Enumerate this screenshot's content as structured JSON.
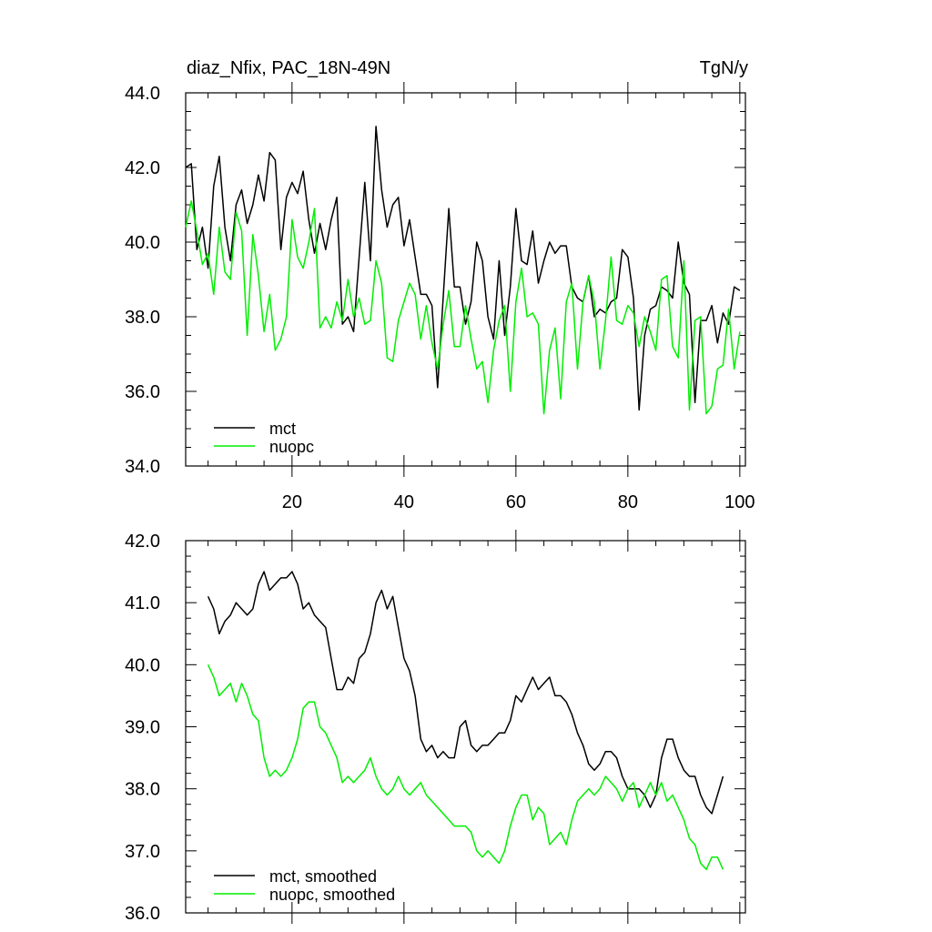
{
  "header": {
    "title": "diaz_Nfix, PAC_18N-49N",
    "units": "TgN/y"
  },
  "colors": {
    "mct": "#000000",
    "nuopc": "#00ee00",
    "axis": "#000000"
  },
  "chart_data": [
    {
      "type": "line",
      "title": "diaz_Nfix, PAC_18N-49N",
      "units": "TgN/y",
      "xlim": [
        1,
        101
      ],
      "ylim": [
        34,
        44
      ],
      "yticks": [
        34,
        36,
        38,
        40,
        42,
        44
      ],
      "ytick_labels": [
        "34.0",
        "36.0",
        "38.0",
        "40.0",
        "42.0",
        "44.0"
      ],
      "xticks": [
        20,
        40,
        60,
        80,
        100
      ],
      "xtick_labels": [
        "20",
        "40",
        "60",
        "80",
        "100"
      ],
      "legend_position": "bottom-left",
      "x": [
        1,
        2,
        3,
        4,
        5,
        6,
        7,
        8,
        9,
        10,
        11,
        12,
        13,
        14,
        15,
        16,
        17,
        18,
        19,
        20,
        21,
        22,
        23,
        24,
        25,
        26,
        27,
        28,
        29,
        30,
        31,
        32,
        33,
        34,
        35,
        36,
        37,
        38,
        39,
        40,
        41,
        42,
        43,
        44,
        45,
        46,
        47,
        48,
        49,
        50,
        51,
        52,
        53,
        54,
        55,
        56,
        57,
        58,
        59,
        60,
        61,
        62,
        63,
        64,
        65,
        66,
        67,
        68,
        69,
        70,
        71,
        72,
        73,
        74,
        75,
        76,
        77,
        78,
        79,
        80,
        81,
        82,
        83,
        84,
        85,
        86,
        87,
        88,
        89,
        90,
        91,
        92,
        93,
        94,
        95,
        96,
        97,
        98,
        99,
        100
      ],
      "series": [
        {
          "name": "mct",
          "color": "#000000",
          "values": [
            42.0,
            42.1,
            39.8,
            40.4,
            39.3,
            41.5,
            42.3,
            40.4,
            39.5,
            41.0,
            41.4,
            40.5,
            41.0,
            41.8,
            41.1,
            42.4,
            42.2,
            39.8,
            41.2,
            41.6,
            41.3,
            41.9,
            40.6,
            39.7,
            40.5,
            39.8,
            40.6,
            41.2,
            37.8,
            38.0,
            37.6,
            39.6,
            41.6,
            39.5,
            43.1,
            41.4,
            40.4,
            41.0,
            41.2,
            39.9,
            40.6,
            39.6,
            38.6,
            38.6,
            38.3,
            36.1,
            38.5,
            40.9,
            38.8,
            38.8,
            37.8,
            38.4,
            40.0,
            39.5,
            38.0,
            37.4,
            39.5,
            37.5,
            38.8,
            40.9,
            39.5,
            39.4,
            40.3,
            38.9,
            39.5,
            40.0,
            39.7,
            39.9,
            39.9,
            38.8,
            38.5,
            38.4,
            39.1,
            38.0,
            38.2,
            38.1,
            38.4,
            38.5,
            39.8,
            39.6,
            38.5,
            35.5,
            37.5,
            38.2,
            38.3,
            38.8,
            38.7,
            38.5,
            40.0,
            38.9,
            38.6,
            35.7,
            37.9,
            37.9,
            38.3,
            37.3,
            38.1,
            37.8,
            38.8,
            38.7
          ]
        },
        {
          "name": "nuopc",
          "color": "#00ee00",
          "values": [
            40.4,
            41.1,
            40.3,
            39.4,
            39.7,
            38.6,
            40.4,
            39.2,
            39.0,
            40.8,
            40.3,
            37.5,
            40.2,
            39.1,
            37.6,
            38.6,
            37.1,
            37.4,
            38.0,
            40.6,
            39.6,
            39.3,
            40.0,
            40.9,
            37.7,
            38.0,
            37.7,
            38.4,
            37.9,
            39.0,
            38.0,
            38.5,
            37.8,
            37.9,
            39.5,
            38.9,
            36.9,
            36.8,
            37.9,
            38.4,
            38.9,
            38.6,
            37.4,
            38.3,
            37.3,
            36.6,
            37.8,
            38.7,
            37.2,
            37.2,
            38.3,
            37.4,
            36.6,
            36.8,
            35.7,
            37.1,
            37.9,
            38.3,
            36.0,
            38.4,
            39.3,
            38.0,
            38.1,
            37.8,
            35.4,
            37.1,
            37.7,
            35.8,
            38.4,
            38.9,
            36.6,
            38.4,
            39.1,
            38.4,
            36.6,
            37.9,
            39.6,
            37.9,
            37.8,
            38.3,
            38.1,
            37.2,
            38.0,
            37.6,
            37.1,
            39.0,
            39.1,
            37.2,
            36.9,
            39.5,
            35.5,
            37.9,
            38.0,
            35.4,
            35.6,
            36.6,
            36.7,
            38.2,
            36.6,
            37.6
          ]
        }
      ]
    },
    {
      "type": "line",
      "title": "",
      "xlim": [
        1,
        101
      ],
      "ylim": [
        36,
        42
      ],
      "yticks": [
        36,
        37,
        38,
        39,
        40,
        41,
        42
      ],
      "ytick_labels": [
        "36.0",
        "37.0",
        "38.0",
        "39.0",
        "40.0",
        "41.0",
        "42.0"
      ],
      "xticks": [
        20,
        40,
        60,
        80,
        100
      ],
      "legend_position": "bottom-left",
      "x": [
        5,
        6,
        7,
        8,
        9,
        10,
        11,
        12,
        13,
        14,
        15,
        16,
        17,
        18,
        19,
        20,
        21,
        22,
        23,
        24,
        25,
        26,
        27,
        28,
        29,
        30,
        31,
        32,
        33,
        34,
        35,
        36,
        37,
        38,
        39,
        40,
        41,
        42,
        43,
        44,
        45,
        46,
        47,
        48,
        49,
        50,
        51,
        52,
        53,
        54,
        55,
        56,
        57,
        58,
        59,
        60,
        61,
        62,
        63,
        64,
        65,
        66,
        67,
        68,
        69,
        70,
        71,
        72,
        73,
        74,
        75,
        76,
        77,
        78,
        79,
        80,
        81,
        82,
        83,
        84,
        85,
        86,
        87,
        88,
        89,
        90,
        91,
        92,
        93,
        94,
        95,
        96,
        97
      ],
      "series": [
        {
          "name": "mct, smoothed",
          "color": "#000000",
          "values": [
            41.1,
            40.9,
            40.5,
            40.7,
            40.8,
            41.0,
            40.9,
            40.8,
            40.9,
            41.3,
            41.5,
            41.2,
            41.3,
            41.4,
            41.4,
            41.5,
            41.3,
            40.9,
            41.0,
            40.8,
            40.7,
            40.6,
            40.1,
            39.6,
            39.6,
            39.8,
            39.7,
            40.1,
            40.2,
            40.5,
            41.0,
            41.2,
            40.9,
            41.1,
            40.6,
            40.1,
            39.9,
            39.5,
            38.8,
            38.6,
            38.7,
            38.5,
            38.6,
            38.5,
            38.5,
            39.0,
            39.1,
            38.7,
            38.6,
            38.7,
            38.7,
            38.8,
            38.9,
            38.9,
            39.1,
            39.5,
            39.4,
            39.6,
            39.8,
            39.6,
            39.7,
            39.8,
            39.5,
            39.5,
            39.4,
            39.2,
            38.9,
            38.7,
            38.4,
            38.3,
            38.4,
            38.6,
            38.6,
            38.5,
            38.2,
            38.0,
            38.0,
            38.0,
            37.9,
            37.7,
            37.9,
            38.5,
            38.8,
            38.8,
            38.5,
            38.3,
            38.2,
            38.2,
            37.9,
            37.7,
            37.6,
            37.9,
            38.2
          ]
        },
        {
          "name": "nuopc, smoothed",
          "color": "#00ee00",
          "values": [
            40.0,
            39.8,
            39.5,
            39.6,
            39.7,
            39.4,
            39.7,
            39.5,
            39.2,
            39.1,
            38.5,
            38.2,
            38.3,
            38.2,
            38.3,
            38.5,
            38.8,
            39.3,
            39.4,
            39.4,
            39.0,
            38.9,
            38.7,
            38.5,
            38.1,
            38.2,
            38.1,
            38.2,
            38.3,
            38.5,
            38.2,
            38.0,
            37.9,
            38.0,
            38.2,
            38.0,
            37.9,
            38.0,
            38.1,
            37.9,
            37.8,
            37.7,
            37.6,
            37.5,
            37.4,
            37.4,
            37.4,
            37.3,
            37.0,
            36.9,
            37.0,
            36.9,
            36.8,
            37.0,
            37.4,
            37.7,
            37.9,
            37.9,
            37.5,
            37.7,
            37.6,
            37.1,
            37.2,
            37.3,
            37.1,
            37.5,
            37.8,
            37.9,
            38.0,
            37.9,
            38.0,
            38.2,
            38.1,
            38.0,
            37.8,
            38.0,
            38.1,
            37.7,
            37.9,
            38.1,
            37.9,
            38.1,
            37.8,
            37.9,
            37.7,
            37.5,
            37.2,
            37.1,
            36.8,
            36.7,
            36.9,
            36.9,
            36.7
          ]
        }
      ]
    }
  ]
}
